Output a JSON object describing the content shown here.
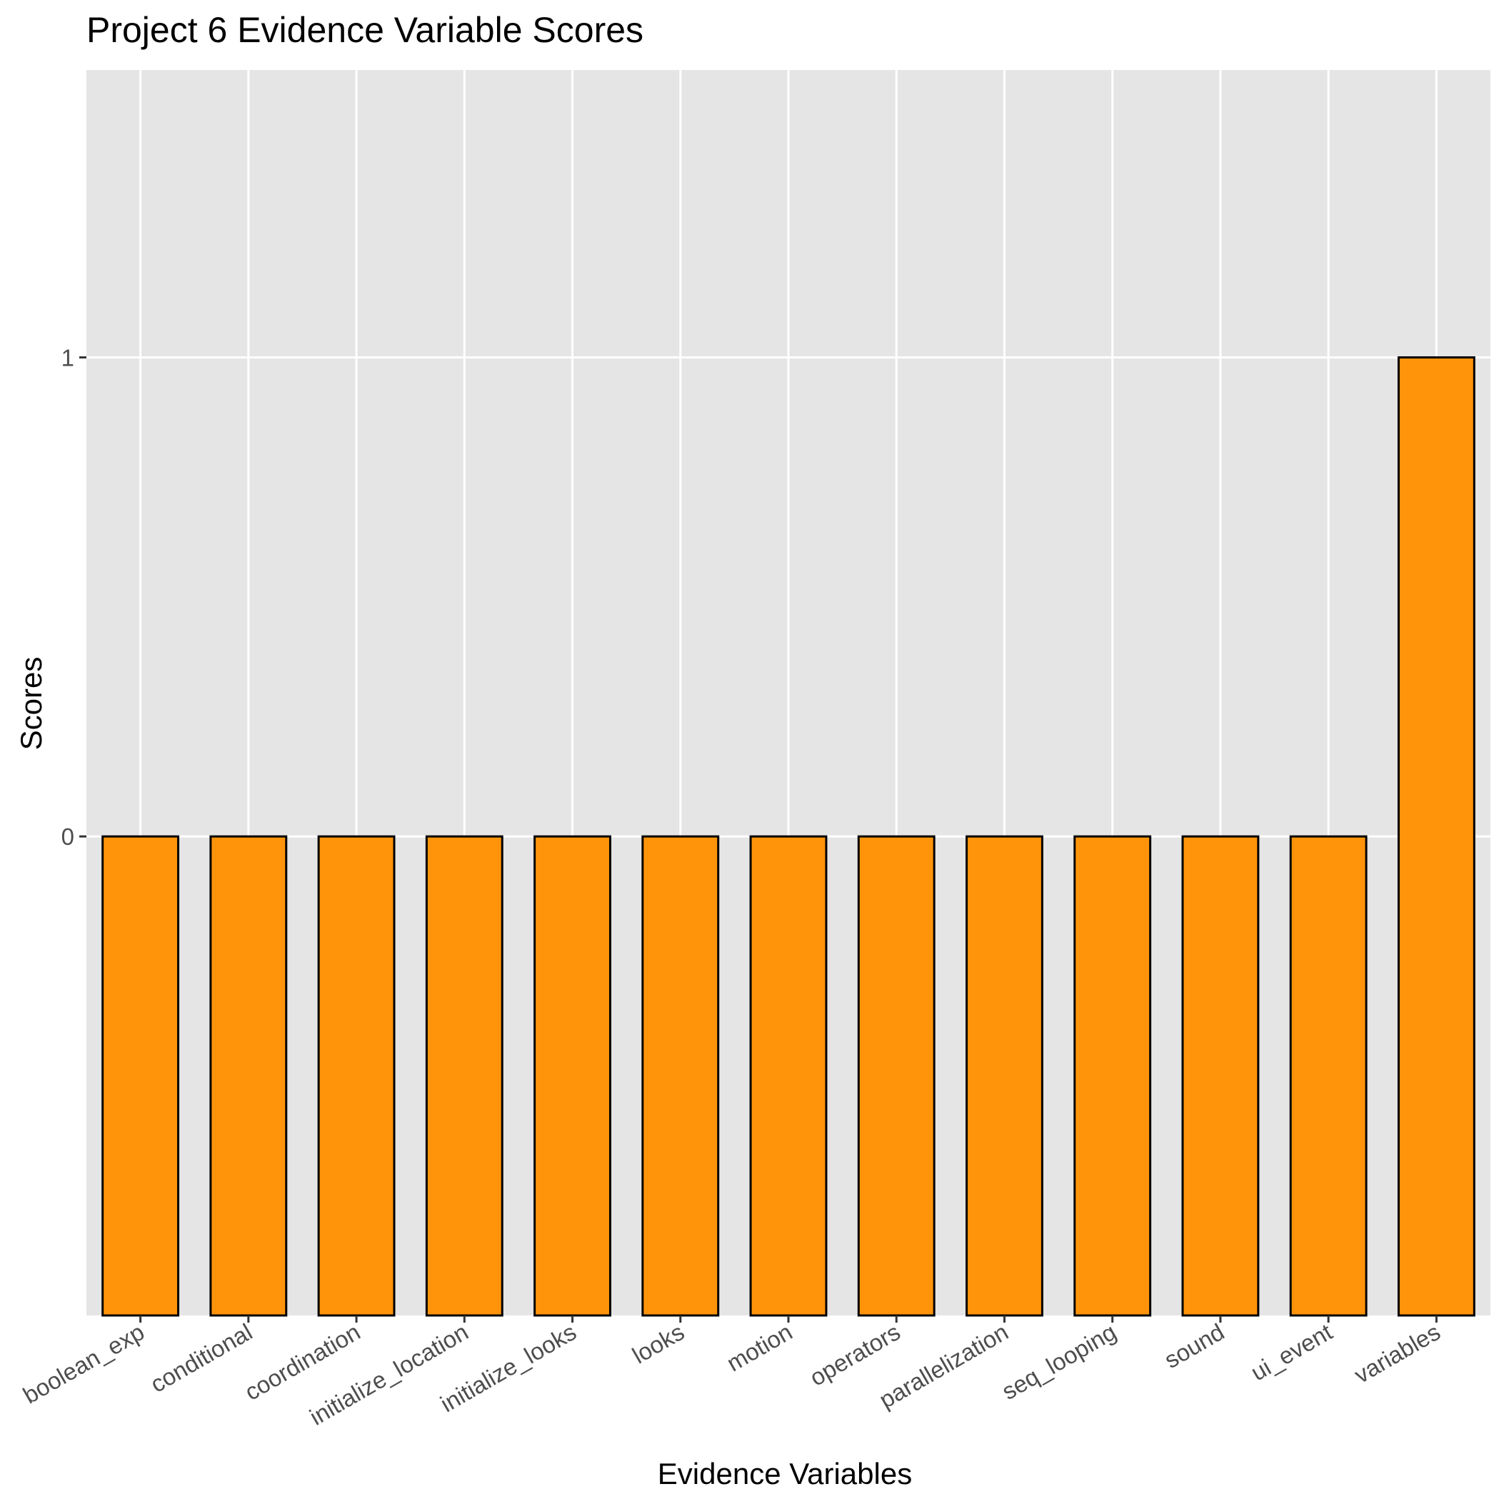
{
  "chart_data": {
    "type": "bar",
    "title": "Project 6 Evidence Variable Scores",
    "xlabel": "Evidence Variables",
    "ylabel": "Scores",
    "categories": [
      "boolean_exp",
      "conditional",
      "coordination",
      "initialize_location",
      "initialize_looks",
      "looks",
      "motion",
      "operators",
      "parallelization",
      "seq_looping",
      "sound",
      "ui_event",
      "variables"
    ],
    "values": [
      0,
      0,
      0,
      0,
      0,
      0,
      0,
      0,
      0,
      0,
      0,
      0,
      1
    ],
    "bar_base": -1,
    "ylim": [
      -1,
      1.6
    ],
    "yticks": [
      0,
      1
    ],
    "ytick_labels": [
      "0",
      "1"
    ],
    "grid": true,
    "colors": {
      "bar_fill": "#FF940A",
      "bar_stroke": "#000000",
      "panel": "#E5E5E5",
      "grid": "#FFFFFF"
    }
  }
}
